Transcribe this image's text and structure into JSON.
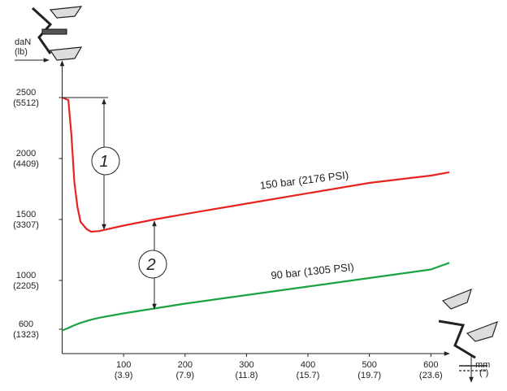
{
  "chart_data": {
    "type": "line",
    "y_unit": "daN",
    "y_unit_alt": "(lb)",
    "x_unit": "mm",
    "x_unit_alt": "(\")",
    "x": [
      0,
      10,
      15,
      20,
      25,
      30,
      40,
      47,
      60,
      100,
      150,
      200,
      300,
      400,
      500,
      600,
      630
    ],
    "series": [
      {
        "name": "150 bar (2176 PSI)",
        "color": "#e52421",
        "values": [
          2500,
          2480,
          2200,
          1800,
          1600,
          1480,
          1420,
          1400,
          1405,
          1450,
          1500,
          1545,
          1630,
          1715,
          1800,
          1860,
          1887
        ]
      },
      {
        "name": "90 bar (1305 PSI)",
        "color": "#1aa342",
        "values": [
          590,
          610,
          622,
          633,
          643,
          652,
          668,
          678,
          694,
          730,
          770,
          810,
          880,
          950,
          1020,
          1090,
          1145
        ]
      }
    ],
    "xlim": [
      0,
      630
    ],
    "ylim": [
      400,
      2800
    ],
    "xticks": [
      100,
      200,
      300,
      400,
      500,
      600
    ],
    "xtick_labels_alt": [
      "(3.9)",
      "(7.9)",
      "(11.8)",
      "(15.7)",
      "(19.7)",
      "(23.6)"
    ],
    "yticks": [
      600,
      1000,
      1500,
      2000,
      2500
    ],
    "ytick_labels_alt": [
      "(1323)",
      "(2205)",
      "(3307)",
      "(4409)",
      "(5512)"
    ],
    "annotations": [
      "1",
      "2"
    ]
  }
}
